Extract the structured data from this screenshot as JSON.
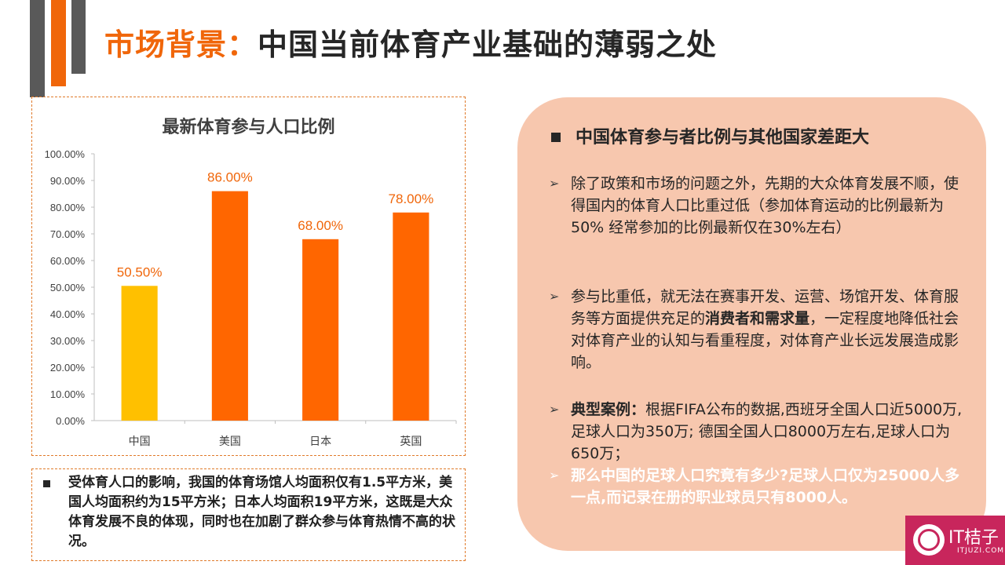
{
  "slide": {
    "title_accent": "市场背景：",
    "title_main": "中国当前体育产业基础的薄弱之处"
  },
  "chart_data": {
    "type": "bar",
    "title": "最新体育参与人口比例",
    "categories": [
      "中国",
      "美国",
      "日本",
      "英国"
    ],
    "values": [
      50.5,
      86.0,
      68.0,
      78.0
    ],
    "value_labels": [
      "50.50%",
      "86.00%",
      "68.00%",
      "78.00%"
    ],
    "bar_colors": [
      "#ffc000",
      "#ff6600",
      "#ff6600",
      "#ff6600"
    ],
    "label_color": "#f0660a",
    "ylim": [
      0,
      100
    ],
    "ytick_step": 10,
    "ytick_labels": [
      "0.00%",
      "10.00%",
      "20.00%",
      "30.00%",
      "40.00%",
      "50.00%",
      "60.00%",
      "70.00%",
      "80.00%",
      "90.00%",
      "100.00%"
    ],
    "grid": false,
    "xlabel": "",
    "ylabel": ""
  },
  "note": {
    "text": "受体育人口的影响，我国的体育场馆人均面积仅有1.5平方米，美国人均面积约为15平方米；日本人均面积19平方米，这既是大众体育发展不良的体现，同时也在加剧了群众参与体育热情不高的状况。"
  },
  "right_panel": {
    "heading": "中国体育参与者比例与其他国家差距大",
    "p1": "除了政策和市场的问题之外，先期的大众体育发展不顺，使得国内的体育人口比重过低（参加体育运动的比例最新为50% 经常参加的比例最新仅在30%左右）",
    "p2_pre": "参与比重低，就无法在赛事开发、运营、场馆开发、体育服务等方面提供充足的",
    "p2_bold": "消费者和需求量",
    "p2_post": "，一定程度地降低社会对体育产业的认知与看重程度，对体育产业长远发展造成影响。",
    "p3_bold": "典型案例：",
    "p3_text": "根据FIFA公布的数据,西班牙全国人口近5000万,足球人口为350万; 德国全国人口8000万左右,足球人口为650万；",
    "p4": "那么中国的足球人口究竟有多少?足球人口仅为25000人多一点,而记录在册的职业球员只有8000人。",
    "arrow_glyph": "➢"
  },
  "logo": {
    "name": "IT桔子",
    "sub": "ITJUZI.COM"
  }
}
